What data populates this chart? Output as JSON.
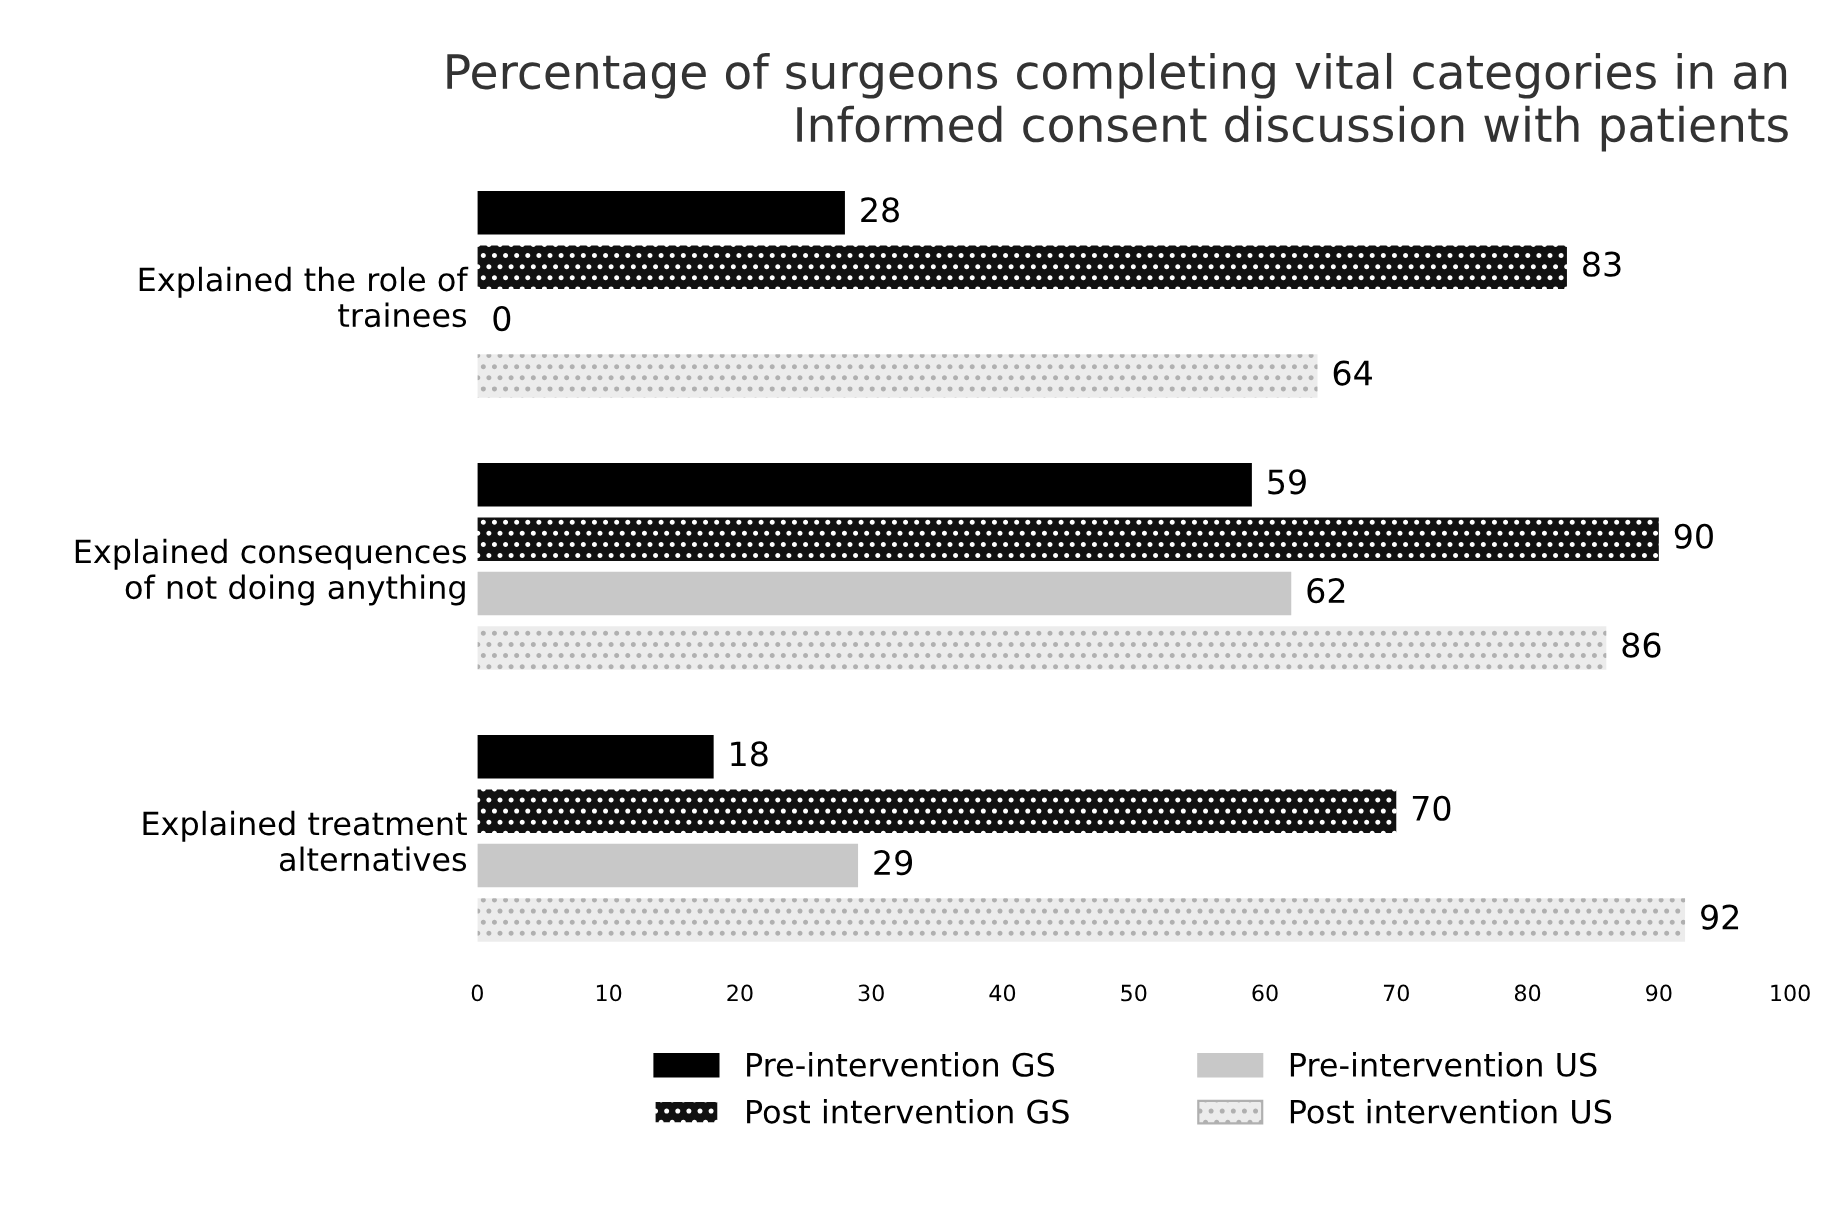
{
  "chart_data": {
    "type": "bar",
    "orientation": "horizontal",
    "title": "Percentage of surgeons completing vital categories in an\nInformed consent discussion with patients",
    "categories": [
      "Explained the role of\ntrainees",
      "Explained consequences\nof not doing anything",
      "Explained treatment\nalternatives"
    ],
    "series": [
      {
        "name": "Pre-intervention GS",
        "color": "#000000",
        "values": [
          28,
          59,
          18
        ]
      },
      {
        "name": "Post intervention GS",
        "color": "#111111",
        "values": [
          83,
          90,
          70
        ]
      },
      {
        "name": "Pre-intervention US",
        "color": "#c8c8c8",
        "values": [
          0,
          62,
          29
        ]
      },
      {
        "name": "Post intervention US",
        "color": "#ececec",
        "values": [
          64,
          86,
          92
        ]
      }
    ],
    "xlim": [
      0,
      100
    ],
    "xticks": [
      0,
      10,
      20,
      30,
      40,
      50,
      60,
      70,
      80,
      90,
      100
    ],
    "grid": false,
    "legend": "bottom",
    "data_labels": true
  }
}
